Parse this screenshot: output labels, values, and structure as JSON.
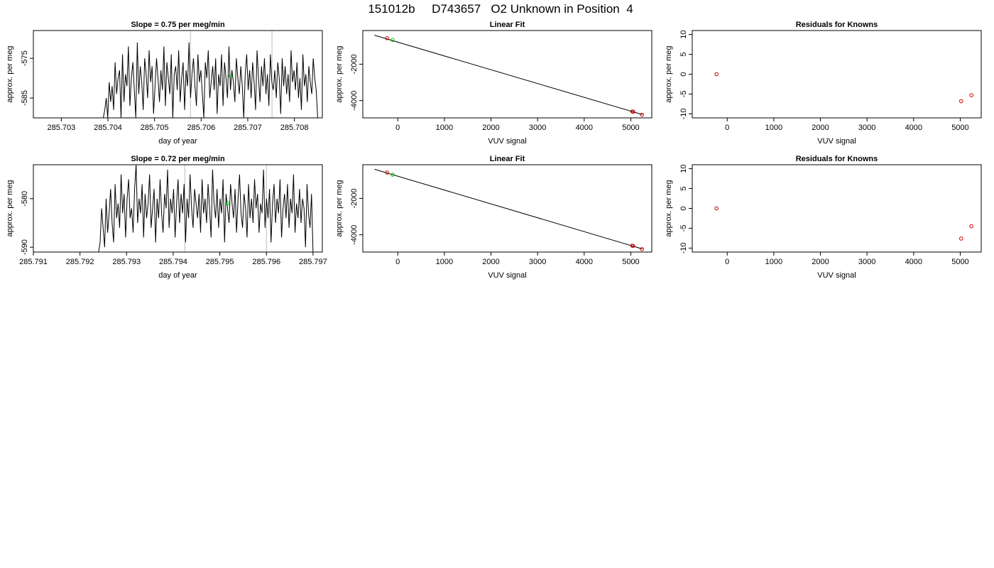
{
  "header": {
    "title": "151012b     D743657   O2 Unknown in Position  4"
  },
  "colors": {
    "known_marker": "#cc0000",
    "unknown_marker": "#00cc00",
    "fit_line": "#000000",
    "aliquot_marker_line": "#bdbdbd"
  },
  "chart_data": [
    {
      "id": "timeseries-row1",
      "type": "line",
      "title": "Slope =  0.75  per meg/min",
      "xlabel": "day of year",
      "ylabel": "approx. per meg",
      "xlim": [
        285.7024,
        285.7086
      ],
      "ylim": [
        -590,
        -568
      ],
      "xticks": [
        "285.703",
        "285.704",
        "285.705",
        "285.706",
        "285.707",
        "285.708"
      ],
      "yticks": [
        "-575",
        "-585"
      ],
      "xtick_values": [
        285.703,
        285.704,
        285.705,
        285.706,
        285.707,
        285.708
      ],
      "ytick_values": [
        -575,
        -585
      ],
      "series_start_x": 285.7039,
      "series_end_x": 285.7085,
      "series_y": [
        -590,
        -588,
        -585,
        -590,
        -581,
        -586,
        -582,
        -588,
        -576,
        -584,
        -580,
        -578,
        -590,
        -574,
        -586,
        -579,
        -582,
        -572,
        -587,
        -580,
        -576,
        -583,
        -590,
        -571,
        -584,
        -577,
        -581,
        -588,
        -575,
        -579,
        -585,
        -573,
        -581,
        -577,
        -589,
        -582,
        -575,
        -580,
        -586,
        -578,
        -583,
        -572,
        -587,
        -576,
        -580,
        -584,
        -574,
        -590,
        -579,
        -577,
        -583,
        -573,
        -586,
        -580,
        -576,
        -588,
        -578,
        -582,
        -571,
        -585,
        -579,
        -575,
        -582,
        -587,
        -574,
        -581,
        -578,
        -584,
        -590,
        -576,
        -580,
        -573,
        -585,
        -581,
        -577,
        -583,
        -575,
        -589,
        -579,
        -582,
        -574,
        -587,
        -576,
        -580,
        -585,
        -572,
        -583,
        -578,
        -581,
        -586,
        -575,
        -580,
        -584,
        -577,
        -582,
        -590,
        -579,
        -574,
        -583,
        -578,
        -585,
        -576,
        -581,
        -588,
        -573,
        -580,
        -586,
        -577,
        -582,
        -575,
        -584,
        -579,
        -587,
        -574,
        -581,
        -583,
        -578,
        -585,
        -576,
        -580,
        -589,
        -575,
        -582,
        -577,
        -584,
        -579,
        -586,
        -573,
        -581,
        -578,
        -583,
        -576,
        -585,
        -580,
        -588,
        -574,
        -582,
        -579,
        -586,
        -577,
        -581,
        -584,
        -575,
        -580,
        -583,
        -590
      ],
      "aliquot_lines_x": [
        285.70577,
        285.70752
      ],
      "unknown_point": {
        "x": 285.70663,
        "y": -579.5
      }
    },
    {
      "id": "linearfit-row1",
      "type": "scatter",
      "title": "Linear Fit",
      "xlabel": "VUV signal",
      "ylabel": "approx. per meg",
      "xlim": [
        -750,
        5450
      ],
      "ylim": [
        -4950,
        -150
      ],
      "xticks": [
        "0",
        "1000",
        "2000",
        "3000",
        "4000",
        "5000"
      ],
      "yticks": [
        "-2000",
        "-4000"
      ],
      "xtick_values": [
        0,
        1000,
        2000,
        3000,
        4000,
        5000
      ],
      "ytick_values": [
        -2000,
        -4000
      ],
      "fit_line": [
        [
          -500,
          -410
        ],
        [
          5250,
          -4770
        ]
      ],
      "knowns": [
        [
          -230,
          -570
        ],
        [
          5030,
          -4600
        ],
        [
          5050,
          -4610
        ],
        [
          5240,
          -4780
        ]
      ],
      "unknowns": [
        [
          -110,
          -670
        ]
      ]
    },
    {
      "id": "residuals-row1",
      "type": "scatter",
      "title": "Residuals for Knowns",
      "xlabel": "VUV signal",
      "ylabel": "approx. per meg",
      "xlim": [
        -750,
        5450
      ],
      "ylim": [
        -11,
        11
      ],
      "xticks": [
        "0",
        "1000",
        "2000",
        "3000",
        "4000",
        "5000"
      ],
      "yticks": [
        "-10",
        "-5",
        "0",
        "5",
        "10"
      ],
      "xtick_values": [
        0,
        1000,
        2000,
        3000,
        4000,
        5000
      ],
      "ytick_values": [
        -10,
        -5,
        0,
        5,
        10
      ],
      "knowns": [
        [
          -230,
          0.0
        ],
        [
          5020,
          -6.8
        ],
        [
          5240,
          -5.3
        ]
      ]
    },
    {
      "id": "timeseries-row2",
      "type": "line",
      "title": "Slope =  0.72  per meg/min",
      "xlabel": "day of year",
      "ylabel": "approx. per meg",
      "xlim": [
        285.791,
        285.7972
      ],
      "ylim": [
        -591,
        -573
      ],
      "xticks": [
        "285.791",
        "285.792",
        "285.793",
        "285.794",
        "285.795",
        "285.796",
        "285.797"
      ],
      "yticks": [
        "-580",
        "-590"
      ],
      "xtick_values": [
        285.791,
        285.792,
        285.793,
        285.794,
        285.795,
        285.796,
        285.797
      ],
      "ytick_values": [
        -580,
        -590
      ],
      "series_start_x": 285.7924,
      "series_end_x": 285.797,
      "series_y": [
        -591,
        -589,
        -582,
        -586,
        -590,
        -580,
        -587,
        -583,
        -578,
        -585,
        -589,
        -577,
        -584,
        -581,
        -586,
        -575,
        -583,
        -579,
        -588,
        -580,
        -576,
        -584,
        -582,
        -587,
        -578,
        -573,
        -585,
        -580,
        -583,
        -577,
        -588,
        -579,
        -584,
        -581,
        -575,
        -586,
        -582,
        -578,
        -589,
        -580,
        -584,
        -576,
        -583,
        -587,
        -579,
        -582,
        -574,
        -586,
        -580,
        -583,
        -578,
        -588,
        -581,
        -576,
        -585,
        -579,
        -583,
        -577,
        -589,
        -580,
        -584,
        -575,
        -582,
        -586,
        -578,
        -581,
        -584,
        -579,
        -587,
        -576,
        -583,
        -580,
        -585,
        -577,
        -582,
        -588,
        -574,
        -581,
        -584,
        -578,
        -586,
        -580,
        -583,
        -576,
        -589,
        -579,
        -582,
        -585,
        -577,
        -581,
        -584,
        -578,
        -587,
        -580,
        -575,
        -583,
        -586,
        -579,
        -582,
        -588,
        -577,
        -584,
        -580,
        -585,
        -576,
        -582,
        -579,
        -587,
        -581,
        -583,
        -574,
        -586,
        -580,
        -584,
        -578,
        -589,
        -581,
        -577,
        -585,
        -580,
        -583,
        -576,
        -588,
        -582,
        -579,
        -584,
        -577,
        -586,
        -580,
        -583,
        -575,
        -587,
        -581,
        -584,
        -578,
        -585,
        -580,
        -582,
        -590,
        -577,
        -583,
        -586,
        -579,
        -591
      ],
      "aliquot_lines_x": [
        285.79425,
        285.796
      ],
      "unknown_point": {
        "x": 285.79517,
        "y": -581.0
      }
    },
    {
      "id": "linearfit-row2",
      "type": "scatter",
      "title": "Linear Fit",
      "xlabel": "VUV signal",
      "ylabel": "approx. per meg",
      "xlim": [
        -750,
        5450
      ],
      "ylim": [
        -4950,
        -150
      ],
      "xticks": [
        "0",
        "1000",
        "2000",
        "3000",
        "4000",
        "5000"
      ],
      "yticks": [
        "-2000",
        "-4000"
      ],
      "xtick_values": [
        0,
        1000,
        2000,
        3000,
        4000,
        5000
      ],
      "ytick_values": [
        -2000,
        -4000
      ],
      "fit_line": [
        [
          -500,
          -400
        ],
        [
          5250,
          -4780
        ]
      ],
      "knowns": [
        [
          -230,
          -580
        ],
        [
          5030,
          -4600
        ],
        [
          5050,
          -4610
        ],
        [
          5240,
          -4790
        ]
      ],
      "unknowns": [
        [
          -110,
          -700
        ]
      ]
    },
    {
      "id": "residuals-row2",
      "type": "scatter",
      "title": "Residuals for Knowns",
      "xlabel": "VUV signal",
      "ylabel": "approx. per meg",
      "xlim": [
        -750,
        5450
      ],
      "ylim": [
        -11,
        11
      ],
      "xticks": [
        "0",
        "1000",
        "2000",
        "3000",
        "4000",
        "5000"
      ],
      "yticks": [
        "-10",
        "-5",
        "0",
        "5",
        "10"
      ],
      "xtick_values": [
        0,
        1000,
        2000,
        3000,
        4000,
        5000
      ],
      "ytick_values": [
        -10,
        -5,
        0,
        5,
        10
      ],
      "knowns": [
        [
          -230,
          0.0
        ],
        [
          5020,
          -7.6
        ],
        [
          5240,
          -4.5
        ]
      ]
    }
  ]
}
